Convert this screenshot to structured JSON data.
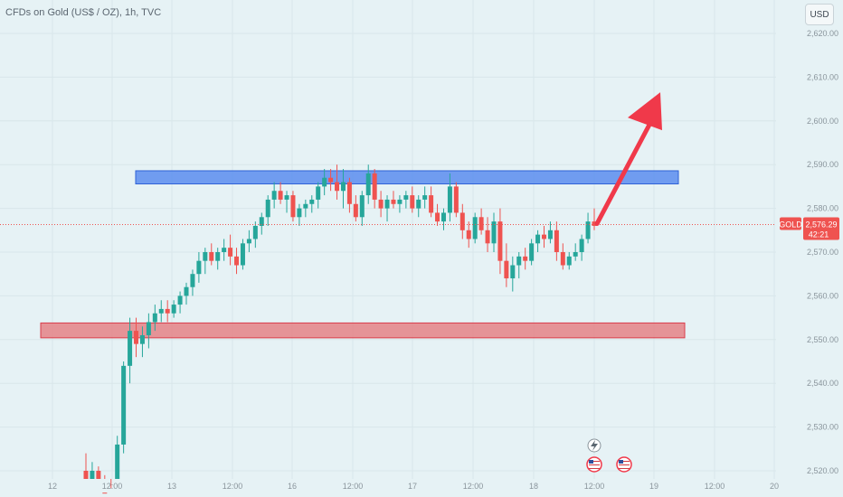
{
  "header": {
    "title": "CFDs on Gold (US$ / OZ), 1h, TVC",
    "currency_button": "USD"
  },
  "price_tag": {
    "symbol": "GOLD",
    "price": "2,576.29",
    "countdown": "42:21"
  },
  "colors": {
    "up": "#26a69a",
    "down": "#ef5350",
    "resistance_zone": "#5b8def",
    "support_zone": "#e57a7f",
    "arrow": "#f0394a",
    "background": "#e6f2f5"
  },
  "icons": [
    "lightning-event-icon",
    "us-flag-event-icon",
    "us-flag-event-icon"
  ],
  "chart_data": {
    "type": "candlestick",
    "title": "CFDs on Gold (US$ / OZ), 1h, TVC",
    "symbol": "GOLD",
    "last_price": 2576.29,
    "y_ticks": [
      "2,520.00",
      "2,530.00",
      "2,540.00",
      "2,550.00",
      "2,560.00",
      "2,570.00",
      "2,580.00",
      "2,590.00",
      "2,600.00",
      "2,610.00",
      "2,620.00"
    ],
    "x_ticks": [
      "12",
      "12:00",
      "13",
      "12:00",
      "16",
      "12:00",
      "17",
      "12:00",
      "18",
      "12:00",
      "19",
      "12:00",
      "20"
    ],
    "ylim": [
      2517,
      2627
    ],
    "zones": [
      {
        "name": "resistance",
        "from": 2585.6,
        "to": 2588.6
      },
      {
        "name": "support",
        "from": 2550.4,
        "to": 2553.8
      }
    ],
    "projection": {
      "from": 2576.5,
      "to": 2602
    },
    "candles": [
      [
        2520,
        2524,
        2516,
        2518
      ],
      [
        2518,
        2522,
        2514,
        2520
      ],
      [
        2520,
        2521,
        2512,
        2515
      ],
      [
        2515,
        2519,
        2510,
        2513
      ],
      [
        2513,
        2516,
        2509,
        2511
      ],
      [
        2511,
        2528,
        2507,
        2526
      ],
      [
        2526,
        2545,
        2524,
        2544
      ],
      [
        2544,
        2555,
        2540,
        2552
      ],
      [
        2552,
        2555,
        2546,
        2549
      ],
      [
        2549,
        2553,
        2546,
        2551
      ],
      [
        2551,
        2556,
        2548,
        2554
      ],
      [
        2554,
        2558,
        2552,
        2556
      ],
      [
        2556,
        2559,
        2554,
        2557
      ],
      [
        2557,
        2559,
        2554,
        2556
      ],
      [
        2556,
        2559,
        2555,
        2558
      ],
      [
        2558,
        2561,
        2556,
        2560
      ],
      [
        2560,
        2563,
        2558,
        2562
      ],
      [
        2562,
        2566,
        2560,
        2565
      ],
      [
        2565,
        2570,
        2563,
        2568
      ],
      [
        2568,
        2571,
        2565,
        2570
      ],
      [
        2570,
        2572,
        2567,
        2568
      ],
      [
        2568,
        2571,
        2566,
        2570
      ],
      [
        2570,
        2573,
        2568,
        2571
      ],
      [
        2571,
        2574,
        2567,
        2569
      ],
      [
        2569,
        2571,
        2565,
        2567
      ],
      [
        2567,
        2573,
        2566,
        2572
      ],
      [
        2572,
        2575,
        2570,
        2573
      ],
      [
        2573,
        2577,
        2571,
        2576
      ],
      [
        2576,
        2579,
        2574,
        2578
      ],
      [
        2578,
        2583,
        2576,
        2582
      ],
      [
        2582,
        2586,
        2580,
        2584
      ],
      [
        2584,
        2586,
        2581,
        2582
      ],
      [
        2582,
        2584,
        2579,
        2583
      ],
      [
        2583,
        2584,
        2577,
        2578
      ],
      [
        2578,
        2581,
        2576,
        2580
      ],
      [
        2580,
        2582,
        2578,
        2581
      ],
      [
        2581,
        2583,
        2579,
        2582
      ],
      [
        2582,
        2586,
        2580,
        2585
      ],
      [
        2585,
        2589,
        2583,
        2587
      ],
      [
        2587,
        2589,
        2584,
        2586
      ],
      [
        2586,
        2590,
        2582,
        2584
      ],
      [
        2584,
        2589,
        2580,
        2586
      ],
      [
        2586,
        2587,
        2579,
        2581
      ],
      [
        2581,
        2583,
        2577,
        2578
      ],
      [
        2578,
        2584,
        2576,
        2583
      ],
      [
        2583,
        2590,
        2581,
        2588
      ],
      [
        2588,
        2589,
        2580,
        2582
      ],
      [
        2582,
        2584,
        2578,
        2580
      ],
      [
        2580,
        2583,
        2577,
        2582
      ],
      [
        2582,
        2584,
        2580,
        2581
      ],
      [
        2581,
        2583,
        2579,
        2582
      ],
      [
        2582,
        2584,
        2580,
        2583
      ],
      [
        2583,
        2585,
        2579,
        2580
      ],
      [
        2580,
        2583,
        2578,
        2582
      ],
      [
        2582,
        2585,
        2580,
        2583
      ],
      [
        2583,
        2585,
        2578,
        2579
      ],
      [
        2579,
        2581,
        2576,
        2577
      ],
      [
        2577,
        2580,
        2575,
        2579
      ],
      [
        2579,
        2588,
        2577,
        2585
      ],
      [
        2585,
        2586,
        2578,
        2579
      ],
      [
        2579,
        2581,
        2573,
        2575
      ],
      [
        2575,
        2577,
        2571,
        2573
      ],
      [
        2573,
        2579,
        2572,
        2578
      ],
      [
        2578,
        2580,
        2574,
        2575
      ],
      [
        2575,
        2578,
        2570,
        2572
      ],
      [
        2572,
        2579,
        2570,
        2577
      ],
      [
        2577,
        2580,
        2565,
        2568
      ],
      [
        2568,
        2572,
        2562,
        2564
      ],
      [
        2564,
        2569,
        2561,
        2567
      ],
      [
        2567,
        2570,
        2564,
        2569
      ],
      [
        2569,
        2571,
        2566,
        2568
      ],
      [
        2568,
        2573,
        2567,
        2572
      ],
      [
        2572,
        2575,
        2570,
        2574
      ],
      [
        2574,
        2576,
        2571,
        2573
      ],
      [
        2573,
        2577,
        2572,
        2575
      ],
      [
        2575,
        2577,
        2568,
        2570
      ],
      [
        2570,
        2572,
        2566,
        2567
      ],
      [
        2567,
        2570,
        2566,
        2569
      ],
      [
        2569,
        2572,
        2568,
        2570
      ],
      [
        2570,
        2574,
        2568,
        2573
      ],
      [
        2573,
        2579,
        2572,
        2577
      ],
      [
        2577,
        2580,
        2575,
        2576
      ]
    ]
  }
}
